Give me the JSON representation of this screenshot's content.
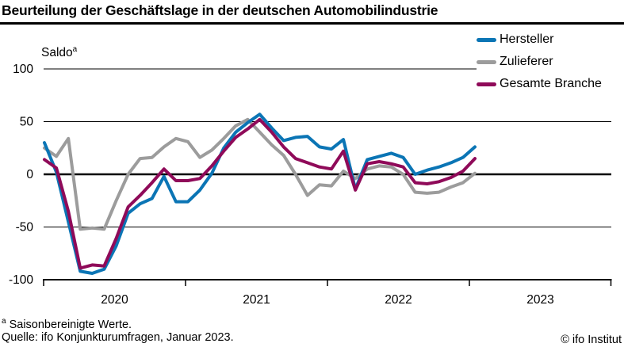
{
  "title": "Beurteilung der Geschäftslage in der deutschen Automobilindustrie",
  "saldo": {
    "text": "Saldo",
    "sup": "a"
  },
  "footnote": {
    "sup": "a",
    "text": " Saisonbereinigte Werte."
  },
  "source": "Quelle: ifo Konjunkturumfragen, Januar 2023.",
  "copyright": "© ifo Institut",
  "chart_data": {
    "type": "line",
    "title": "Beurteilung der Geschäftslage in der deutschen Automobilindustrie",
    "ylabel": "Saldo (saisonbereinigt)",
    "ylim": [
      -100,
      100
    ],
    "y_ticks": [
      100,
      50,
      0,
      -50,
      -100
    ],
    "y_tick_labels": [
      "100",
      "50",
      "0",
      "-50",
      "-100"
    ],
    "x_tick_labels": [
      "2020",
      "2021",
      "2022",
      "2023"
    ],
    "grid": true,
    "legend_position": "top-right",
    "categories": [
      "2020-01",
      "2020-02",
      "2020-03",
      "2020-04",
      "2020-05",
      "2020-06",
      "2020-07",
      "2020-08",
      "2020-09",
      "2020-10",
      "2020-11",
      "2020-12",
      "2021-01",
      "2021-02",
      "2021-03",
      "2021-04",
      "2021-05",
      "2021-06",
      "2021-07",
      "2021-08",
      "2021-09",
      "2021-10",
      "2021-11",
      "2021-12",
      "2022-01",
      "2022-02",
      "2022-03",
      "2022-04",
      "2022-05",
      "2022-06",
      "2022-07",
      "2022-08",
      "2022-09",
      "2022-10",
      "2022-11",
      "2022-12",
      "2023-01"
    ],
    "draw_order": [
      1,
      0,
      2
    ],
    "series": [
      {
        "name": "Hersteller",
        "color": "#0b75b5",
        "values": [
          30,
          2,
          -45,
          -92,
          -94,
          -90,
          -68,
          -37,
          -28,
          -23,
          -2,
          -26,
          -26,
          -15,
          1,
          25,
          40,
          49,
          57,
          44,
          32,
          35,
          36,
          26,
          24,
          33,
          -14,
          14,
          17,
          20,
          16,
          0,
          4,
          7,
          11,
          16,
          26
        ]
      },
      {
        "name": "Zulieferer",
        "color": "#9c9c9c",
        "values": [
          25,
          17,
          34,
          -52,
          -51,
          -52,
          -25,
          0,
          15,
          16,
          26,
          34,
          31,
          16,
          23,
          34,
          46,
          52,
          40,
          28,
          18,
          0,
          -20,
          -10,
          -11,
          3,
          -4,
          5,
          8,
          7,
          0,
          -17,
          -18,
          -17,
          -12,
          -8,
          1
        ]
      },
      {
        "name": "Gesamte Branche",
        "color": "#8f0a59",
        "values": [
          14,
          6,
          -35,
          -89,
          -86,
          -87,
          -61,
          -31,
          -20,
          -8,
          5,
          -6,
          -6,
          -4,
          8,
          22,
          35,
          43,
          52,
          40,
          26,
          15,
          11,
          7,
          5,
          22,
          -15,
          10,
          12,
          10,
          7,
          -8,
          -9,
          -7,
          -3,
          3,
          15
        ]
      }
    ]
  }
}
